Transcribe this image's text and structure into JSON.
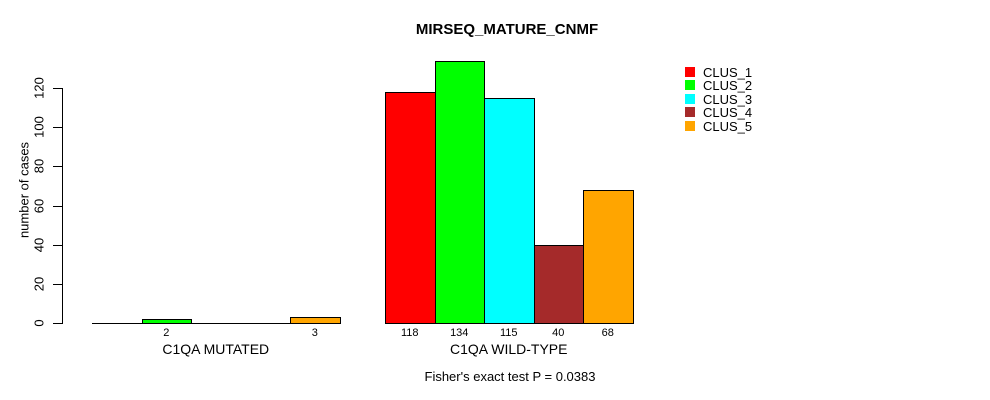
{
  "chart_data": {
    "type": "bar",
    "title": "MIRSEQ_MATURE_CNMF",
    "ylabel": "number of cases",
    "annotation": "Fisher's exact test P = 0.0383",
    "ylim": [
      0,
      120
    ],
    "yticks": [
      0,
      20,
      40,
      60,
      80,
      100,
      120
    ],
    "grid": false,
    "legend_position": "top-right",
    "background_color": "#FFFFFF",
    "axis_color": "#000000",
    "series": [
      {
        "name": "CLUS_1",
        "color": "#FF0000"
      },
      {
        "name": "CLUS_2",
        "color": "#00FF00"
      },
      {
        "name": "CLUS_3",
        "color": "#00FFFF"
      },
      {
        "name": "CLUS_4",
        "color": "#A52A2A"
      },
      {
        "name": "CLUS_5",
        "color": "#FFA500"
      }
    ],
    "categories": [
      "C1QA MUTATED",
      "C1QA WILD-TYPE"
    ],
    "groups": [
      {
        "label": "C1QA MUTATED",
        "values": [
          0,
          2,
          0,
          0,
          3
        ]
      },
      {
        "label": "C1QA WILD-TYPE",
        "values": [
          118,
          134,
          115,
          40,
          68
        ]
      }
    ],
    "bar_value_labels": {
      "visible": true,
      "hide_zero": true
    }
  }
}
